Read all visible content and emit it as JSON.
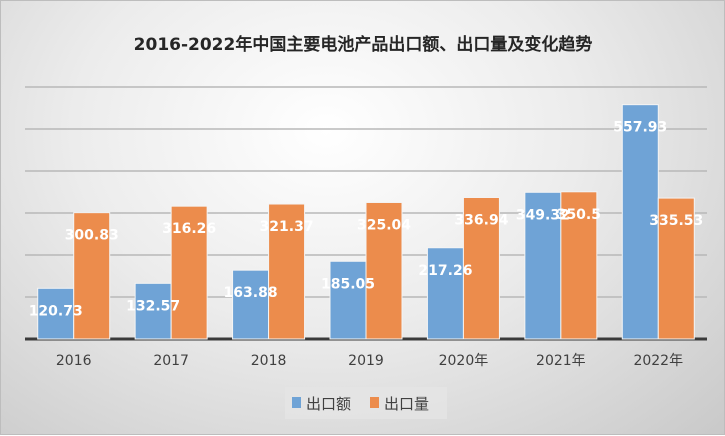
{
  "chart_data": {
    "type": "bar",
    "title": "2016-2022年中国主要电池产品出口额、出口量及变化趋势",
    "categories": [
      "2016",
      "2017",
      "2018",
      "2019",
      "2020年",
      "2021年",
      "2022年"
    ],
    "series": [
      {
        "name": "出口额",
        "color": "#6fa3d6",
        "values": [
          120.73,
          132.57,
          163.88,
          185.05,
          217.26,
          349.32,
          557.93
        ]
      },
      {
        "name": "出口量",
        "color": "#ec8c4c",
        "values": [
          300.83,
          316.26,
          321.37,
          325.04,
          336.94,
          350.5,
          335.53
        ]
      }
    ],
    "xlabel": "",
    "ylabel": "",
    "ylim": [
      0,
      600
    ],
    "grid": true,
    "gridStep": 100,
    "legend": "bottom"
  }
}
